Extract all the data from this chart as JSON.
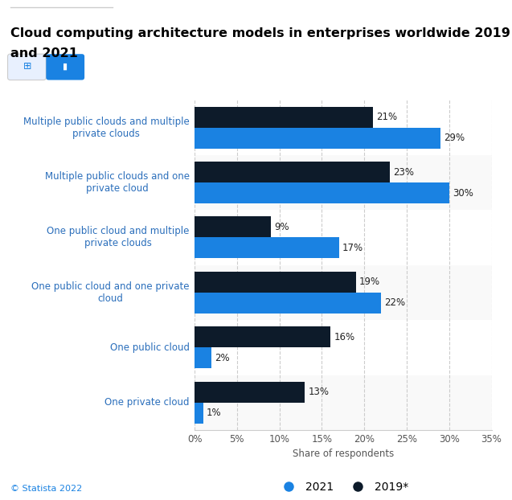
{
  "title_line1": "Cloud computing architecture models in enterprises worldwide 2019",
  "title_line2": "and 2021",
  "categories": [
    "One private cloud",
    "One public cloud",
    "One public cloud and one private\ncloud",
    "One public cloud and multiple\nprivate clouds",
    "Multiple public clouds and one\nprivate cloud",
    "Multiple public clouds and multiple\nprivate clouds"
  ],
  "values_2019": [
    13,
    16,
    19,
    9,
    23,
    21
  ],
  "values_2021": [
    1,
    2,
    22,
    17,
    30,
    29
  ],
  "color_2019": "#0d1b2a",
  "color_2021": "#1a82e2",
  "xlabel": "Share of respondents",
  "bar_height": 0.38,
  "xlim": [
    0,
    35
  ],
  "xticks": [
    0,
    5,
    10,
    15,
    20,
    25,
    30,
    35
  ],
  "legend_2021": "2021",
  "legend_2019": "2019*",
  "footer": "© Statista 2022",
  "background_color": "#ffffff",
  "title_fontsize": 11.5,
  "label_fontsize": 8.5,
  "tick_fontsize": 8.5,
  "axis_label_color": "#2a6ebb",
  "value_label_color": "#222222",
  "grid_color": "#cccccc",
  "button1_color": "#e8f0fe",
  "button2_color": "#1a82e2"
}
